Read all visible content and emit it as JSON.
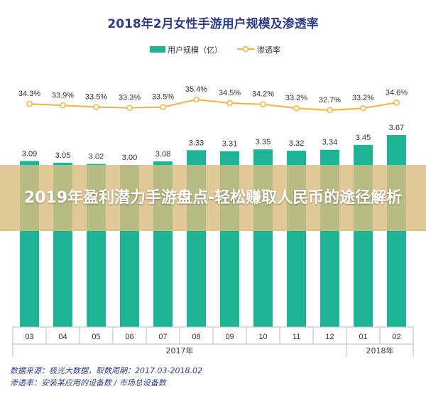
{
  "colors": {
    "bar": "#1eb596",
    "line": "#f4b43c",
    "title": "#2e3f85",
    "axis": "#bbbbbb",
    "text": "#333333"
  },
  "overlay": {
    "banner_text": "2019年盈利潜力手游盘点-轻松赚取人民币的途径解析"
  },
  "source": {
    "data_line": "数据来源：极光大数据，取数周期：2017.03-2018.02",
    "penetration_line": "渗透率：安装某应用的设备数 / 市场总设备数"
  },
  "chart_data": {
    "type": "bar",
    "title": "2018年2月女性手游用户规模及渗透率",
    "categories": [
      "03",
      "04",
      "05",
      "06",
      "07",
      "08",
      "09",
      "10",
      "11",
      "12",
      "01",
      "02"
    ],
    "groups": [
      {
        "label": "2017年",
        "from": 0,
        "to": 9
      },
      {
        "label": "2018年",
        "from": 10,
        "to": 11
      }
    ],
    "series": [
      {
        "name": "用户规模（亿）",
        "type": "bar",
        "values": [
          3.09,
          3.05,
          3.02,
          3.0,
          3.08,
          3.33,
          3.31,
          3.35,
          3.32,
          3.34,
          3.45,
          3.67
        ],
        "labels": [
          "3.09",
          "3.05",
          "3.02",
          "3.00",
          "3.08",
          "3.33",
          "3.31",
          "3.35",
          "3.32",
          "3.34",
          "3.45",
          "3.67"
        ]
      },
      {
        "name": "渗透率",
        "type": "line",
        "values": [
          34.3,
          33.9,
          33.5,
          33.3,
          33.5,
          35.4,
          34.5,
          34.2,
          33.2,
          32.7,
          33.2,
          34.6
        ],
        "labels": [
          "34.3%",
          "33.9%",
          "33.5%",
          "33.3%",
          "33.5%",
          "35.4%",
          "34.5%",
          "34.2%",
          "33.2%",
          "32.7%",
          "33.2%",
          "34.6%"
        ]
      }
    ],
    "legend": "top-center"
  }
}
